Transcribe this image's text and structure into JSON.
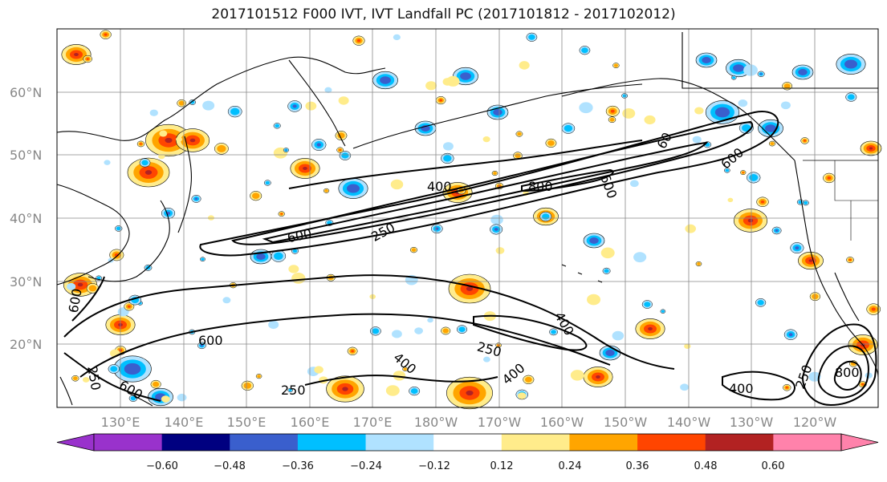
{
  "title": "2017101512 F000 IVT, IVT Landfall PC (2017101812 - 2017102012)",
  "lat_labels": [
    "60°N",
    "50°N",
    "40°N",
    "30°N",
    "20°N"
  ],
  "lon_labels": [
    "130°E",
    "140°E",
    "150°E",
    "160°E",
    "170°E",
    "180°W",
    "170°W",
    "160°W",
    "150°W",
    "140°W",
    "130°W",
    "120°W"
  ],
  "contour_labels": [
    "400",
    "800",
    "600",
    "600",
    "250",
    "600",
    "600",
    "250",
    "600",
    "400",
    "250",
    "400",
    "400",
    "250",
    "400",
    "250",
    "60",
    "600",
    "800"
  ],
  "colorbar": {
    "colors": [
      "#9932cc",
      "#000080",
      "#3a5fcd",
      "#00bfff",
      "#b0e2ff",
      "#ffffff",
      "#ffec8b",
      "#ffa500",
      "#ff4500",
      "#b22222",
      "#ff82ab"
    ],
    "tick_labels": [
      "−0.60",
      "−0.48",
      "−0.36",
      "−0.24",
      "−0.12",
      "0.12",
      "0.24",
      "0.36",
      "0.48",
      "0.60"
    ]
  },
  "colors": {
    "coast": "#000000",
    "grid": "#888888",
    "pos_light": "#ffec8b",
    "pos_mid": "#ffa500",
    "pos_strong": "#ff4500",
    "pos_max": "#b22222",
    "neg_light": "#b0e2ff",
    "neg_mid": "#00bfff",
    "neg_strong": "#3a5fcd"
  }
}
